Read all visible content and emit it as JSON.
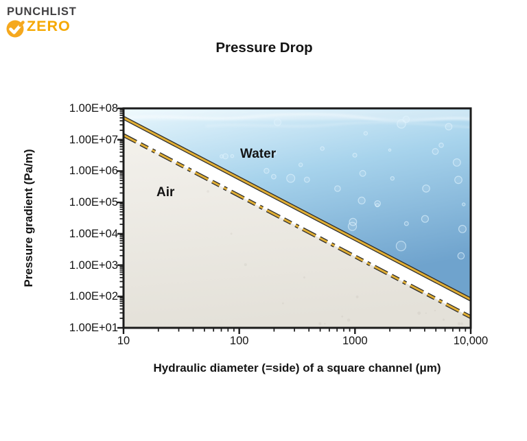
{
  "logo": {
    "brand_top": "PUNCHLIST",
    "brand_bottom": "ZERO",
    "check_icon": "checkmark",
    "brand_dark_color": "#414042",
    "brand_gold_color": "#F5A800"
  },
  "chart": {
    "title": "Pressure Drop",
    "y_axis": {
      "label": "Pressure gradient (Pa/m)",
      "scale": "log",
      "tick_labels": [
        "1.00E+08",
        "1.00E+07",
        "1.00E+06",
        "1.00E+05",
        "1.00E+04",
        "1.00E+03",
        "1.00E+02",
        "1.00E+01"
      ],
      "tick_values": [
        100000000.0,
        10000000.0,
        1000000.0,
        100000.0,
        10000.0,
        1000.0,
        100.0,
        10.0
      ]
    },
    "x_axis": {
      "label": "Hydraulic diameter (=side) of a square channel (μm)",
      "scale": "log",
      "tick_labels": [
        "10",
        "100",
        "1000",
        "10,000"
      ],
      "tick_values": [
        10,
        100,
        1000,
        10000
      ]
    },
    "series_labels": {
      "water": "Water",
      "air": "Air"
    }
  },
  "chart_data": {
    "type": "line",
    "title": "Pressure Drop",
    "xlabel": "Hydraulic diameter (=side) of a square channel (μm)",
    "ylabel": "Pressure gradient (Pa/m)",
    "log_x": true,
    "log_y": true,
    "xlim": [
      10,
      10000
    ],
    "ylim": [
      10,
      100000000.0
    ],
    "grid": false,
    "legend": "inline-text-labels",
    "series": [
      {
        "name": "Water",
        "style": "solid",
        "line_color": "#E0AE35",
        "outline_color": "#2d2d2d",
        "points": [
          [
            10,
            50000000.0
          ],
          [
            10000,
            80.0
          ]
        ]
      },
      {
        "name": "Air",
        "style": "dashed",
        "line_color": "#E0AE35",
        "outline_color": "#2d2d2d",
        "points": [
          [
            10,
            14000000.0
          ],
          [
            10000,
            22.0
          ]
        ]
      }
    ],
    "annotations": [
      {
        "text": "Water",
        "region": "above solid line",
        "fill": "underwater texture with bubbles"
      },
      {
        "text": "Air",
        "region": "below dashed line",
        "fill": "light warm-gray texture"
      }
    ],
    "colors": {
      "water_fill_top": "#e9f7fd",
      "water_fill_deep": "#6fa3cd",
      "air_fill": "#ece9e2",
      "axis": "#1b1b1b"
    }
  }
}
